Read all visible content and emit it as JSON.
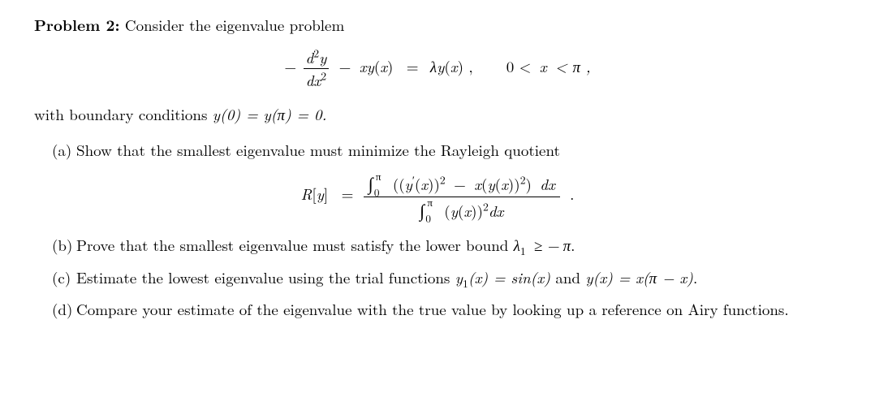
{
  "header": {
    "label": "Problem 2:",
    "text": "Consider the eigenvalue problem"
  },
  "eq1": {
    "minus": "−",
    "frac_num": "d",
    "frac_num_sup": "2",
    "frac_num_y": "y",
    "frac_den": "dx",
    "frac_den_sup": "2",
    "t_minus": "−",
    "t_xy": "xy",
    "t_paren_x_l": "(",
    "t_x": "x",
    "t_paren_x_r": ")",
    "t_eq": "=",
    "t_lambda": "λ",
    "t_y": "y",
    "t_paren_x_l2": "(",
    "t_x2": "x",
    "t_paren_x_r2": ") ,",
    "domain_pre": "0 <",
    "domain_x": "x",
    "domain_post": "< π ,"
  },
  "bc": {
    "pre": "with boundary conditions",
    "eq": "y(0) = y(π) = 0."
  },
  "a": {
    "label": "(a)",
    "text": "Show that the smallest eigenvalue must minimize the Rayleigh quotient"
  },
  "rayleigh": {
    "R": "R",
    "bracket_l": "[",
    "y": "y",
    "bracket_r": "]",
    "eq": "=",
    "int_sym": "∫",
    "int_low": "0",
    "int_high": "π",
    "num_l": "((",
    "yprime": "y",
    "prime": "′",
    "num_m1": "(",
    "x": "x",
    "num_m2": "))",
    "sq": "2",
    "minus": "−",
    "num_m3": "(",
    "yfun": "y",
    "num_m4": "(",
    "num_m5": "))",
    "num_r": ")",
    "dx": "dx",
    "den_l": "(",
    "den_r": ")",
    "period": "."
  },
  "b": {
    "label": "(b)",
    "pre": "Prove that the smallest eigenvalue must satisfy the lower bound",
    "ineq_l": "λ",
    "ineq_sub": "1",
    "ineq_op": "≥ −",
    "ineq_r": "π",
    "period": "."
  },
  "c": {
    "label": "(c)",
    "pre": "Estimate the lowest eigenvalue using the trial functions",
    "y1": "y",
    "y1_sub": "1",
    "y1_arg": "(x) = sin(x)",
    "and": "and",
    "y2": "y(x) = x(π − x)",
    "period": "."
  },
  "d": {
    "label": "(d)",
    "text": "Compare your estimate of the eigenvalue with the true value by looking up a reference on Airy functions."
  }
}
